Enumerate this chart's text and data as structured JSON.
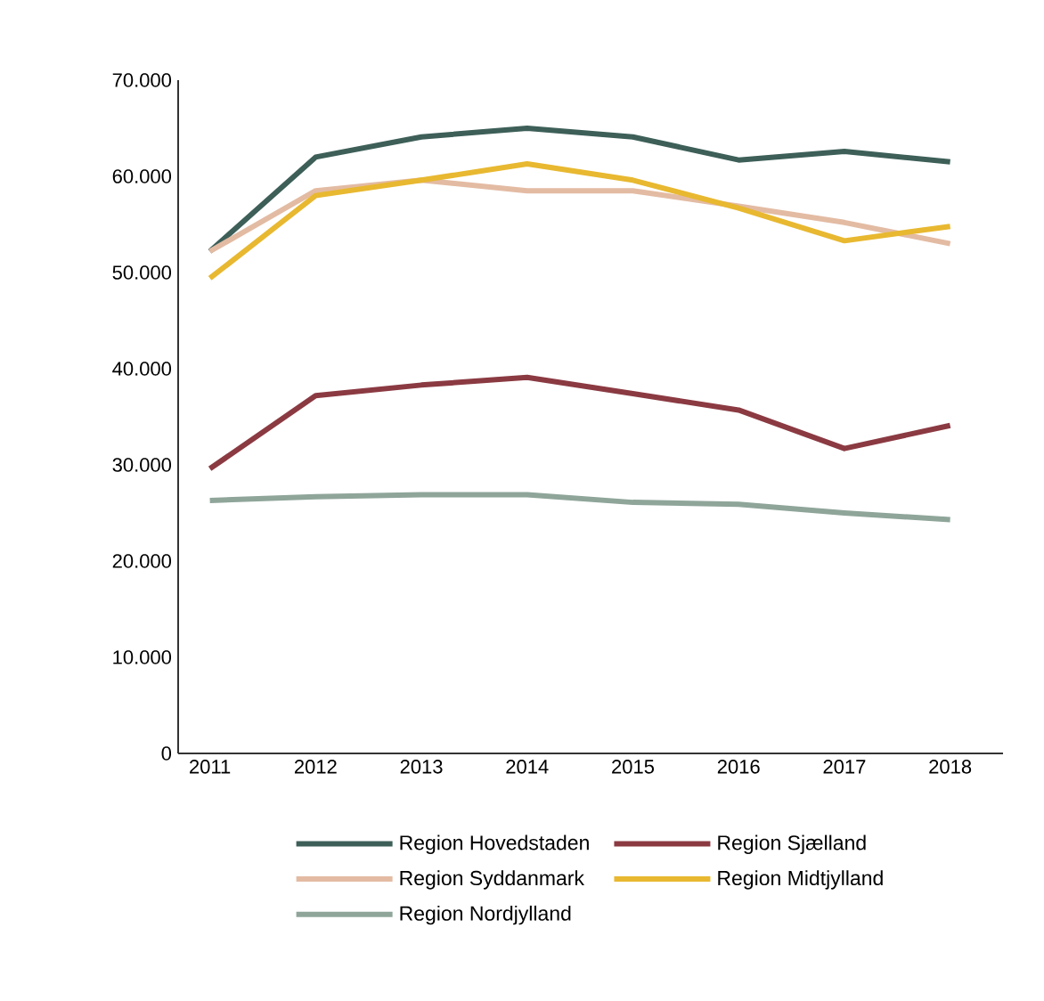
{
  "chart_data": {
    "type": "line",
    "categories": [
      "2011",
      "2012",
      "2013",
      "2014",
      "2015",
      "2016",
      "2017",
      "2018"
    ],
    "series": [
      {
        "name": "Region Hovedstaden",
        "color": "#3d5f58",
        "values": [
          52200,
          62000,
          64100,
          65000,
          64100,
          61700,
          62600,
          61500
        ]
      },
      {
        "name": "Region Sjælland",
        "color": "#8b3a42",
        "values": [
          29600,
          37200,
          38300,
          39100,
          37400,
          35700,
          31700,
          34100
        ]
      },
      {
        "name": "Region Syddanmark",
        "color": "#e3bba3",
        "values": [
          52200,
          58500,
          59600,
          58500,
          58500,
          56900,
          55200,
          53000
        ]
      },
      {
        "name": "Region Midtjylland",
        "color": "#e8b830",
        "values": [
          49400,
          58000,
          59600,
          61300,
          59600,
          56700,
          53300,
          54800
        ]
      },
      {
        "name": "Region Nordjylland",
        "color": "#8fa59a",
        "values": [
          26300,
          26700,
          26900,
          26900,
          26100,
          25900,
          25000,
          24300
        ]
      }
    ],
    "ylim": [
      0,
      70000
    ],
    "yticks": [
      0,
      {
        "value": 10000,
        "label": "10.000"
      },
      {
        "value": 20000,
        "label": "20.000"
      },
      {
        "value": 30000,
        "label": "30.000"
      },
      {
        "value": 40000,
        "label": "40.000"
      },
      {
        "value": 50000,
        "label": "50.000"
      },
      {
        "value": 60000,
        "label": "60.000"
      },
      {
        "value": 70000,
        "label": "70.000"
      }
    ],
    "grid": false,
    "legend": "bottom",
    "line_style": "solid"
  }
}
